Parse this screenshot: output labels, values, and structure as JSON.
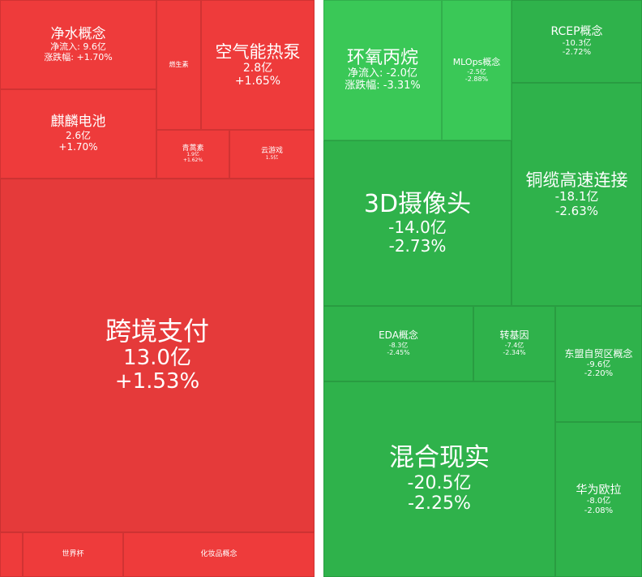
{
  "colors": {
    "gain": "#ee3b3b",
    "gain_dark": "#e53a3a",
    "loss": "#2fb24b",
    "loss_light": "#3ac857",
    "text": "#ffffff"
  },
  "chart_data": [
    {
      "type": "treemap",
      "title": "",
      "metric": "净流入",
      "items": [
        {
          "name": "净水概念",
          "net_inflow": "9.6亿",
          "change": "+1.70%",
          "inflow_label": "净流入:",
          "change_label": "涨跌幅:"
        },
        {
          "name": "燃生素",
          "net_inflow": "",
          "change": ""
        },
        {
          "name": "空气能热泵",
          "net_inflow": "2.8亿",
          "change": "+1.65%"
        },
        {
          "name": "麒麟电池",
          "net_inflow": "2.6亿",
          "change": "+1.70%"
        },
        {
          "name": "青蒿素",
          "net_inflow": "1.9亿",
          "change": "+1.62%"
        },
        {
          "name": "云游戏",
          "net_inflow": "1.5亿",
          "change": ""
        },
        {
          "name": "跨境支付",
          "net_inflow": "13.0亿",
          "change": "+1.53%"
        },
        {
          "name": "",
          "net_inflow": "",
          "change": ""
        },
        {
          "name": "世界杯",
          "net_inflow": "",
          "change": ""
        },
        {
          "name": "化妆品概念",
          "net_inflow": "",
          "change": ""
        }
      ]
    },
    {
      "type": "treemap",
      "title": "",
      "metric": "净流入",
      "items": [
        {
          "name": "环氧丙烷",
          "net_inflow": "-2.0亿",
          "change": "-3.31%",
          "inflow_label": "净流入:",
          "change_label": "涨跌幅:"
        },
        {
          "name": "MLOps概念",
          "net_inflow": "-2.5亿",
          "change": "-2.88%"
        },
        {
          "name": "RCEP概念",
          "net_inflow": "-10.3亿",
          "change": "-2.72%"
        },
        {
          "name": "3D摄像头",
          "net_inflow": "-14.0亿",
          "change": "-2.73%"
        },
        {
          "name": "铜缆高速连接",
          "net_inflow": "-18.1亿",
          "change": "-2.63%"
        },
        {
          "name": "EDA概念",
          "net_inflow": "-8.3亿",
          "change": "-2.45%"
        },
        {
          "name": "转基因",
          "net_inflow": "-7.4亿",
          "change": "-2.34%"
        },
        {
          "name": "东盟自贸区概念",
          "net_inflow": "-9.6亿",
          "change": "-2.20%"
        },
        {
          "name": "混合现实",
          "net_inflow": "-20.5亿",
          "change": "-2.25%"
        },
        {
          "name": "华为欧拉",
          "net_inflow": "-8.0亿",
          "change": "-2.08%"
        }
      ]
    }
  ]
}
